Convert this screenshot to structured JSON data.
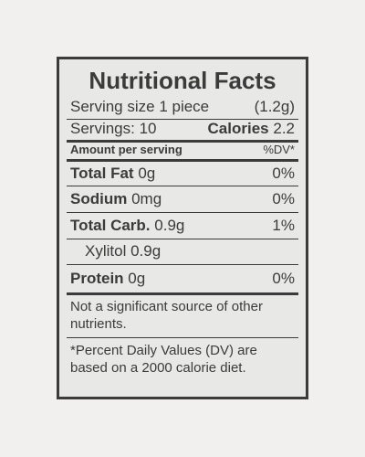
{
  "title": "Nutritional Facts",
  "serving": {
    "label": "Serving size 1 piece",
    "weight": "(1.2g)"
  },
  "servings": {
    "label": "Servings: 10",
    "calories_label": "Calories",
    "calories": "2.2"
  },
  "header": {
    "amount": "Amount per serving",
    "dv": "%DV*"
  },
  "rows": [
    {
      "name": "Total Fat",
      "amount": "0g",
      "dv": "0%"
    },
    {
      "name": "Sodium",
      "amount": "0mg",
      "dv": "0%"
    },
    {
      "name": "Total Carb.",
      "amount": "0.9g",
      "dv": "1%"
    },
    {
      "name": "Xylitol",
      "amount": "0.9g"
    },
    {
      "name": "Protein",
      "amount": "0g",
      "dv": "0%"
    }
  ],
  "footnote": "Not a significant source of other nutrients.",
  "note": "*Percent Daily Values (DV) are based on a 2000 calorie diet."
}
